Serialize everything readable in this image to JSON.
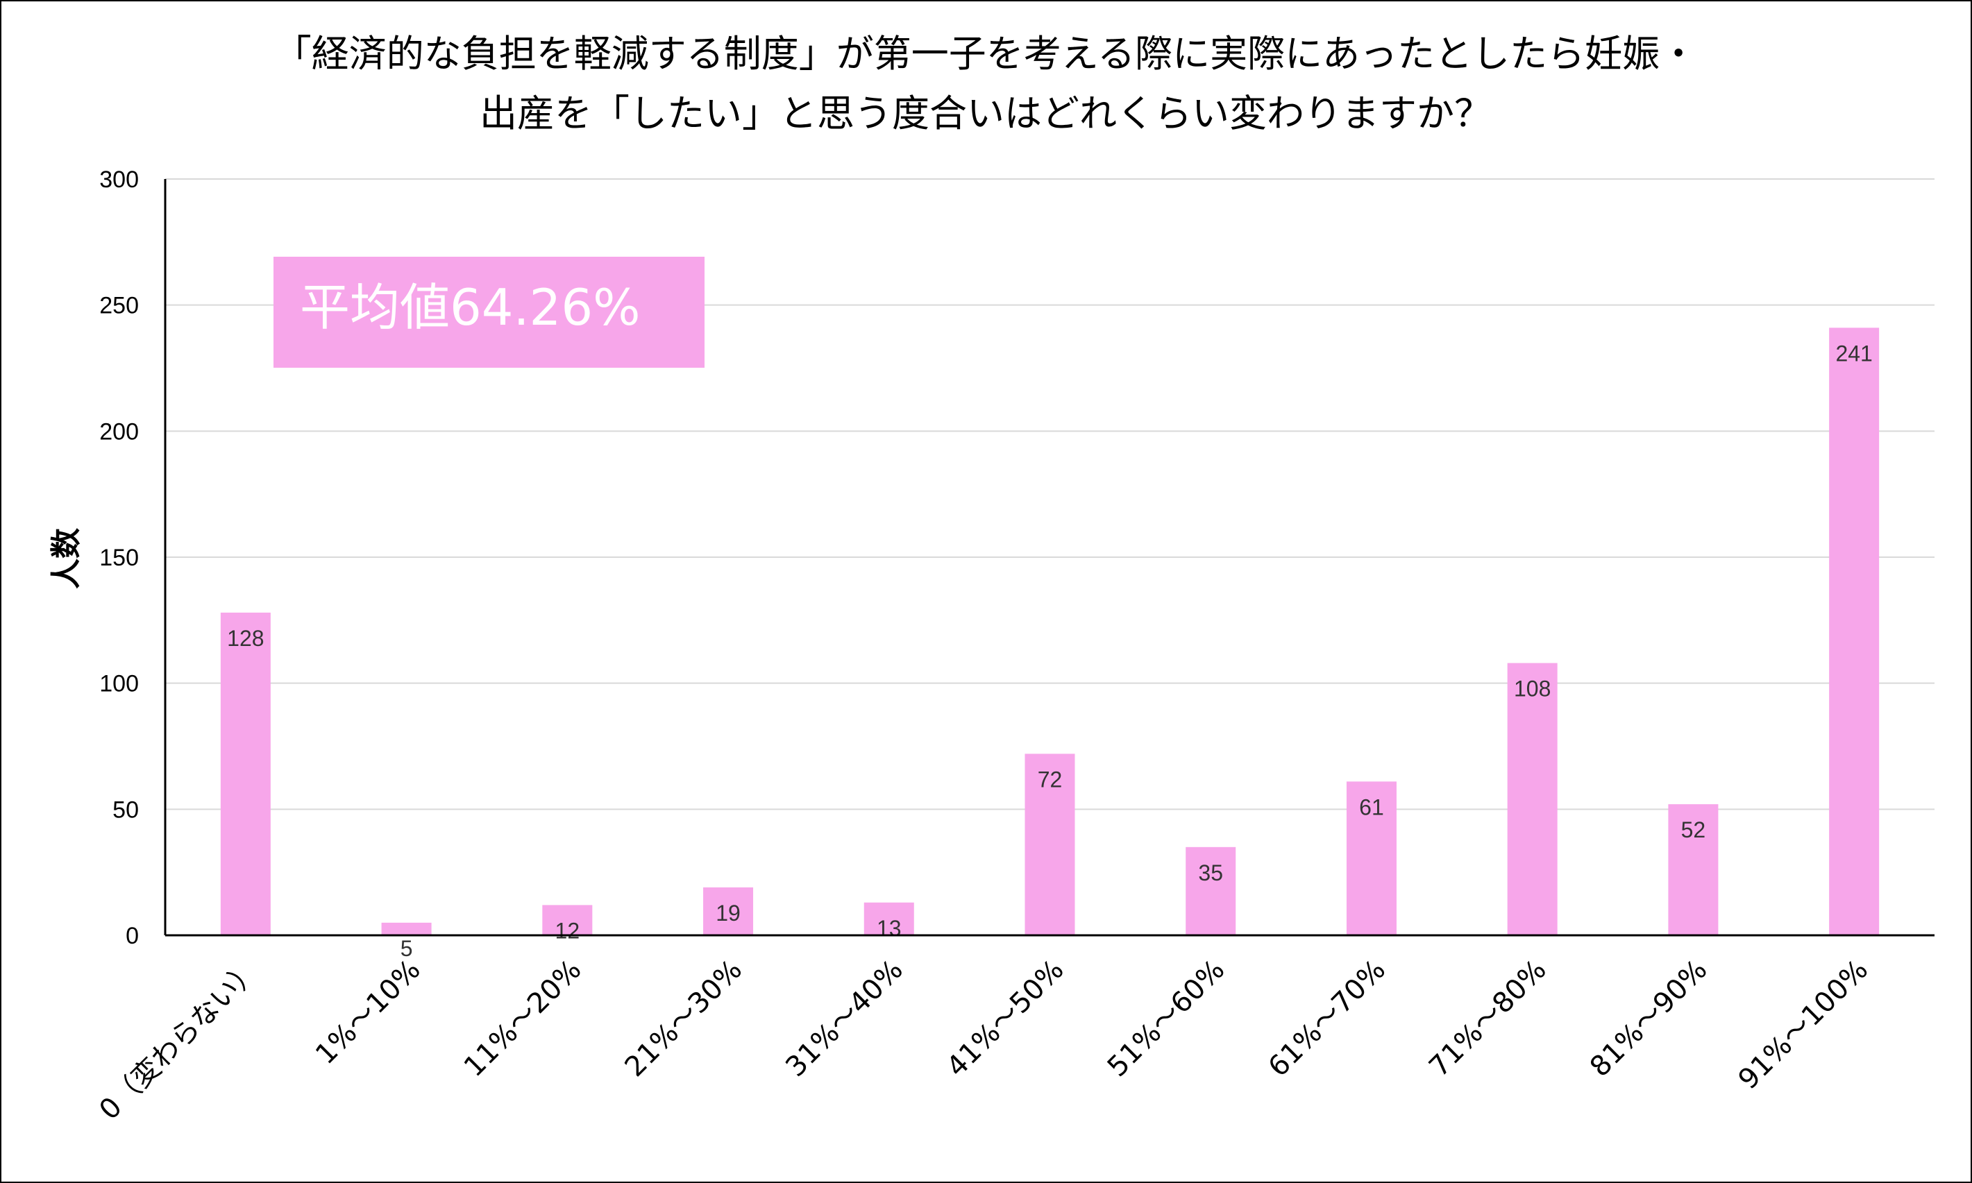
{
  "chart_data": {
    "type": "bar",
    "title_lines": [
      "「経済的な負担を軽減する制度」が第一子を考える際に実際にあったとしたら妊娠・",
      "出産を「したい」と思う度合いはどれくらい変わりますか？"
    ],
    "ylabel": "人数",
    "xlabel": "",
    "ylim": [
      0,
      300
    ],
    "yticks": [
      0,
      50,
      100,
      150,
      200,
      250,
      300
    ],
    "grid": true,
    "categories": [
      "0（変わらない）",
      "1%～10%",
      "11%～20%",
      "21%～30%",
      "31%～40%",
      "41%～50%",
      "51%～60%",
      "61%～70%",
      "71%～80%",
      "81%～90%",
      "91%～100%"
    ],
    "values": [
      128,
      5,
      12,
      19,
      13,
      72,
      35,
      61,
      108,
      52,
      241
    ],
    "bar_color": "#f7a6ea",
    "annotation": "平均値64.26%",
    "annotation_color": "#f7a6ea"
  }
}
